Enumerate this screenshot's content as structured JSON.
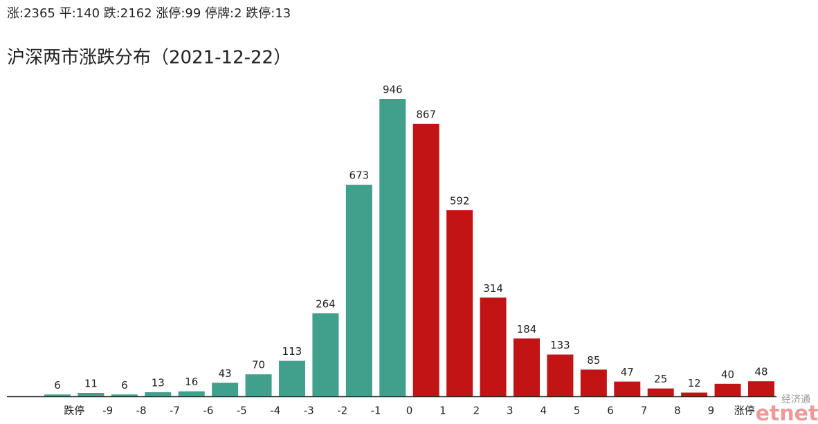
{
  "header": "涨:2365 平:140 跌:2162 涨停:99 停牌:2 跌停:13",
  "chart_data": {
    "type": "bar",
    "title": "沪深两市涨跌分布（2021-12-22）",
    "values": [
      6,
      11,
      6,
      13,
      16,
      43,
      70,
      113,
      264,
      673,
      946,
      867,
      592,
      314,
      184,
      133,
      85,
      47,
      25,
      12,
      40,
      48
    ],
    "colors": [
      "#40a08c",
      "#40a08c",
      "#40a08c",
      "#40a08c",
      "#40a08c",
      "#40a08c",
      "#40a08c",
      "#40a08c",
      "#40a08c",
      "#40a08c",
      "#40a08c",
      "#c21414",
      "#c21414",
      "#c21414",
      "#c21414",
      "#c21414",
      "#c21414",
      "#c21414",
      "#c21414",
      "#c21414",
      "#c21414",
      "#c21414"
    ],
    "boundary_labels": [
      "跌停",
      "-9",
      "-8",
      "-7",
      "-6",
      "-5",
      "-4",
      "-3",
      "-2",
      "-1",
      "0",
      "1",
      "2",
      "3",
      "4",
      "5",
      "6",
      "7",
      "8",
      "9",
      "涨停"
    ],
    "ylim": [
      0,
      1000
    ]
  },
  "watermark": {
    "brand_cn": "经济通",
    "brand": "etnet"
  }
}
